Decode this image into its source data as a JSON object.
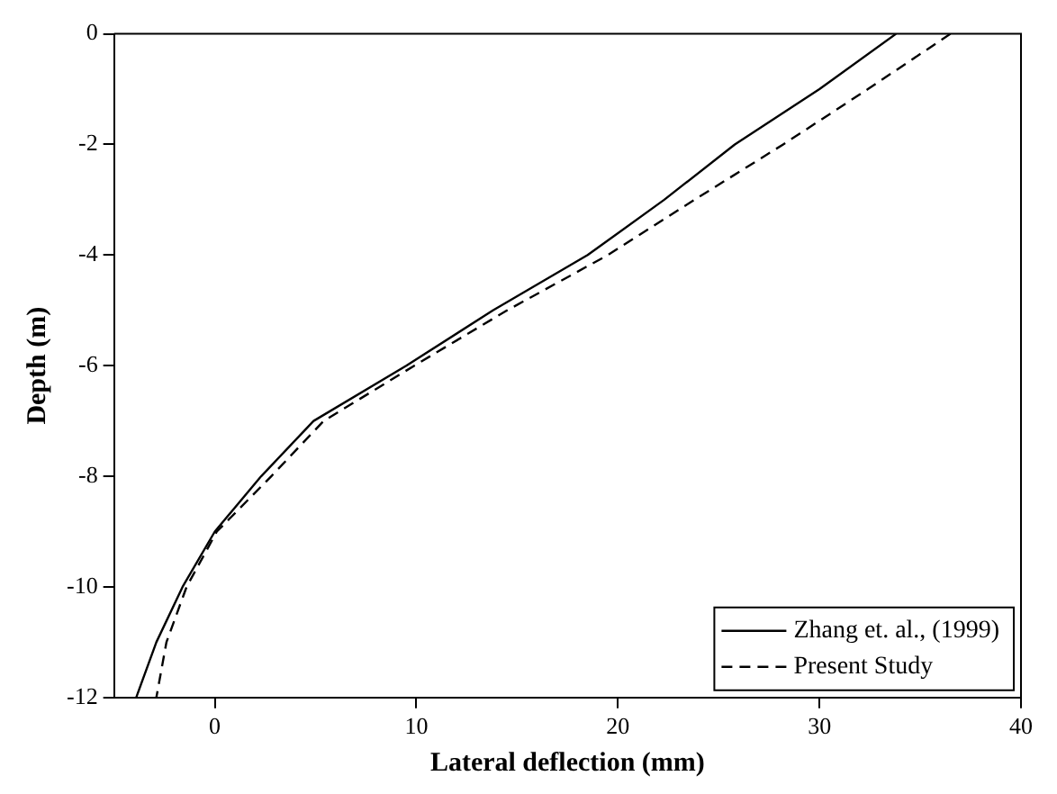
{
  "chart_data": {
    "type": "line",
    "xlabel": "Lateral deflection (mm)",
    "ylabel": "Depth (m)",
    "xlim": [
      -5,
      40
    ],
    "xticks": [
      0,
      10,
      20,
      30,
      40
    ],
    "ylim": [
      -12,
      0
    ],
    "yticks": [
      -12,
      -10,
      -8,
      -6,
      -4,
      -2,
      0
    ],
    "grid": false,
    "legend": "bottom right",
    "marker": "none",
    "series": [
      {
        "name": "Zhang et. al., (1999)",
        "color": "#000000",
        "line_style": "solid",
        "x": [
          33.8,
          30,
          25.8,
          22.3,
          18.5,
          13.8,
          9.5,
          4.9,
          2.3,
          0,
          -1.6,
          -2.9,
          -3.9
        ],
        "values": [
          0,
          -1,
          -2,
          -3,
          -4,
          -5,
          -6,
          -7,
          -8,
          -9,
          -10,
          -11,
          -12
        ]
      },
      {
        "name": "Present Study",
        "color": "#000000",
        "line_style": "dashed",
        "x": [
          36.5,
          32.4,
          28.2,
          23.8,
          19.5,
          14.5,
          9.9,
          5.4,
          2.8,
          0.1,
          -1.4,
          -2.4,
          -2.9
        ],
        "values": [
          0,
          -1,
          -2,
          -3,
          -4,
          -5,
          -6,
          -7,
          -8,
          -9,
          -10,
          -11,
          -12
        ]
      }
    ]
  }
}
